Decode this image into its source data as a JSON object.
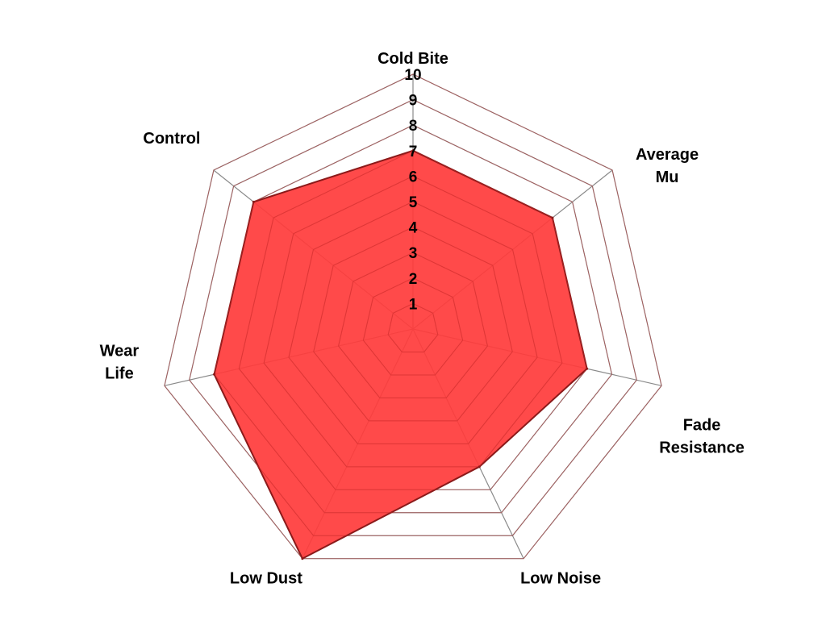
{
  "chart_data": {
    "type": "radar",
    "categories": [
      "Cold Bite",
      "Average Mu",
      "Fade Resistance",
      "Low Noise",
      "Low Dust",
      "Wear Life",
      "Control"
    ],
    "category_lines": [
      [
        "Cold Bite"
      ],
      [
        "Average",
        "Mu"
      ],
      [
        "Fade",
        "Resistance"
      ],
      [
        "Low Noise"
      ],
      [
        "Low Dust"
      ],
      [
        "Wear",
        "Life"
      ],
      [
        "Control"
      ]
    ],
    "values": [
      7,
      7,
      7,
      6,
      10,
      8,
      8
    ],
    "rlim": [
      0,
      10
    ],
    "ticks": [
      "1",
      "2",
      "3",
      "4",
      "5",
      "6",
      "7",
      "8",
      "9",
      "10"
    ],
    "grid": true,
    "fill_color": "#ff3b3b",
    "line_color": "#8b1a1a",
    "grid_color": "#8a8a8a"
  }
}
